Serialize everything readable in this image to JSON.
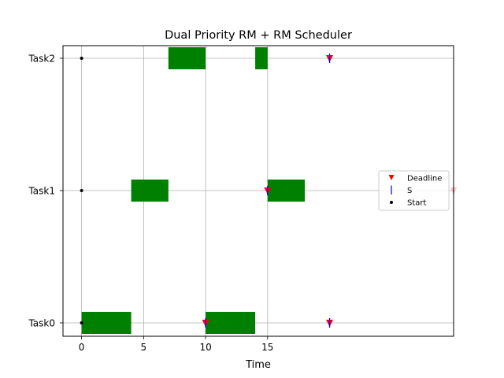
{
  "chart_data": {
    "type": "gantt",
    "title": "Dual Priority RM + RM Scheduler",
    "xlabel": "Time",
    "ylabel": "",
    "xlim": [
      -1.5,
      30
    ],
    "x_ticks": [
      0,
      5,
      10,
      15
    ],
    "grid": true,
    "tasks": [
      "Task0",
      "Task1",
      "Task2"
    ],
    "colors": {
      "execution": "#008000",
      "deadline": "#ff0000",
      "s_marker": "#0000ff",
      "start": "#000000",
      "grid": "#b0b0b0"
    },
    "executions": [
      {
        "task": "Task0",
        "start": 0,
        "end": 4
      },
      {
        "task": "Task0",
        "start": 10,
        "end": 14
      },
      {
        "task": "Task1",
        "start": 4,
        "end": 7
      },
      {
        "task": "Task1",
        "start": 15,
        "end": 18
      },
      {
        "task": "Task2",
        "start": 7,
        "end": 10
      },
      {
        "task": "Task2",
        "start": 14,
        "end": 15
      }
    ],
    "deadlines": [
      {
        "task": "Task0",
        "time": 10
      },
      {
        "task": "Task0",
        "time": 20
      },
      {
        "task": "Task1",
        "time": 15
      },
      {
        "task": "Task1",
        "time": 30
      },
      {
        "task": "Task2",
        "time": 20
      }
    ],
    "s_markers": [
      {
        "task": "Task0",
        "time": 10
      },
      {
        "task": "Task0",
        "time": 20
      },
      {
        "task": "Task1",
        "time": 15
      },
      {
        "task": "Task1",
        "time": 30
      },
      {
        "task": "Task2",
        "time": 20
      }
    ],
    "starts": [
      {
        "task": "Task0",
        "time": 0
      },
      {
        "task": "Task1",
        "time": 0
      },
      {
        "task": "Task2",
        "time": 0
      }
    ],
    "legend": {
      "position": "center-right",
      "entries": [
        "Deadline",
        "S",
        "Start"
      ]
    }
  }
}
